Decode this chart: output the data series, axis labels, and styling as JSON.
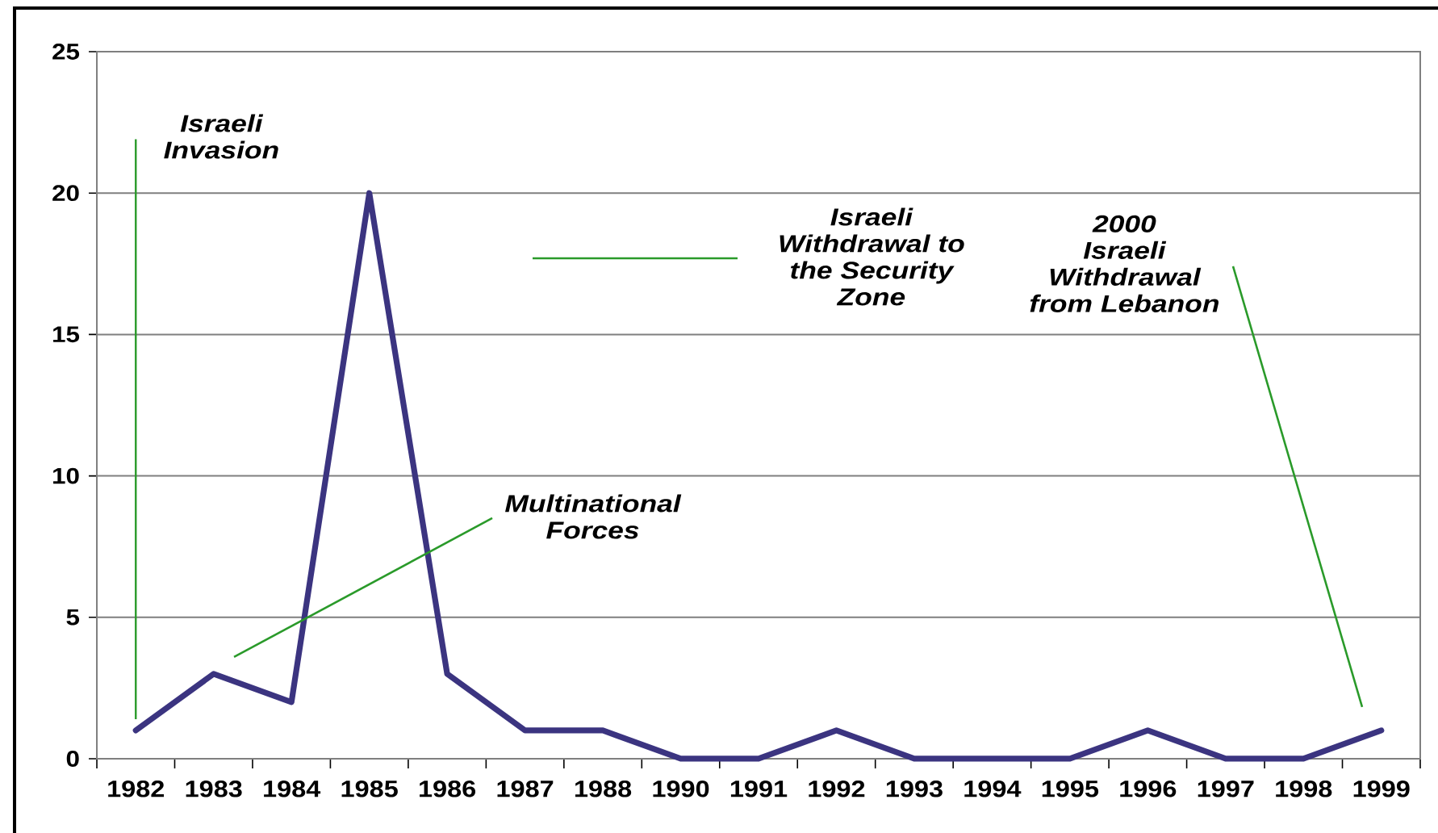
{
  "chart_data": {
    "type": "line",
    "categories": [
      "1982",
      "1983",
      "1984",
      "1985",
      "1986",
      "1987",
      "1988",
      "1990",
      "1991",
      "1992",
      "1993",
      "1994",
      "1995",
      "1996",
      "1997",
      "1998",
      "1999"
    ],
    "values": [
      1,
      3,
      2,
      20,
      3,
      1,
      1,
      0,
      0,
      1,
      0,
      0,
      0,
      1,
      0,
      0,
      1
    ],
    "color": "#3b3480",
    "ylim": [
      0,
      25
    ],
    "yticks": [
      0,
      5,
      10,
      15,
      20,
      25
    ],
    "grid": "y",
    "annotations": [
      {
        "text": "Israeli\nInvasion",
        "x": "1982",
        "y": 1.4
      },
      "Multinational\nForces",
      "Israeli\nWithdrawal to\nthe Security\nZone",
      "2000\nIsraeli\nWithdrawal\nfrom Lebanon"
    ]
  }
}
